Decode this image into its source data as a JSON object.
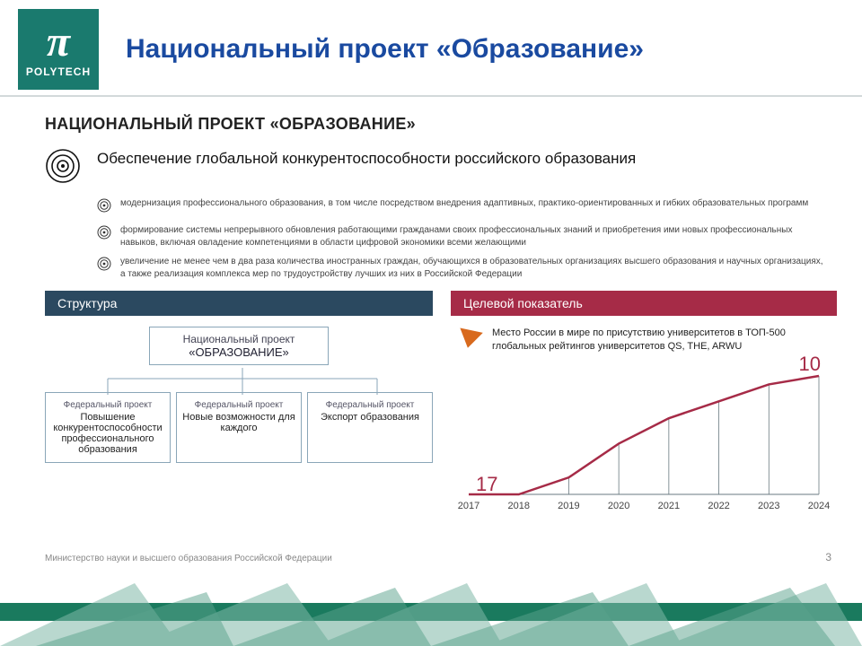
{
  "logo": {
    "symbol": "π",
    "text": "POLYTECH",
    "bg": "#1a7a6e"
  },
  "slide_title": "Национальный проект «Образование»",
  "section_heading": "НАЦИОНАЛЬНЫЙ ПРОЕКТ «ОБРАЗОВАНИЕ»",
  "goal": {
    "main": "Обеспечение глобальной конкурентоспособности российского образования",
    "subs": [
      "модернизация профессионального образования, в том числе посредством внедрения адаптивных, практико-ориентированных и гибких образовательных программ",
      "формирование системы непрерывного обновления работающими гражданами своих профессиональных знаний и приобретения ими новых профессиональных навыков, включая овладение компетенциями в области цифровой экономики всеми желающими",
      "увеличение не менее чем в два раза количества иностранных граждан, обучающихся в образовательных организациях высшего образования и научных организациях, а также реализация комплекса мер по трудоустройству лучших из них в Российской Федерации"
    ]
  },
  "left": {
    "band": "Структура",
    "root": {
      "kicker": "Национальный проект",
      "main": "«ОБРАЗОВАНИЕ»"
    },
    "children": [
      {
        "kicker": "Федеральный проект",
        "title": "Повышение конкурентоспособности профессионального образования"
      },
      {
        "kicker": "Федеральный проект",
        "title": "Новые возможности для каждого"
      },
      {
        "kicker": "Федеральный проект",
        "title": "Экспорт образования"
      }
    ],
    "box_border": "#8aa6b8",
    "connector_color": "#8aa6b8"
  },
  "right": {
    "band": "Целевой показатель",
    "arrow_color": "#d86a1e",
    "heading": "Место России в мире по присутствию университетов в ТОП-500 глобальных рейтингов университетов QS, THE, ARWU",
    "chart": {
      "type": "line",
      "years": [
        "2017",
        "2018",
        "2019",
        "2020",
        "2021",
        "2022",
        "2023",
        "2024"
      ],
      "values": [
        17,
        17,
        16,
        14,
        12.5,
        11.5,
        10.5,
        10
      ],
      "ylim_display": [
        17,
        10
      ],
      "line_color": "#a62b47",
      "line_width": 2.5,
      "grid_color": "#6a7a80",
      "axis_color": "#6a7a80",
      "label_fontsize": 11,
      "label_color": "#444",
      "start_label": "17",
      "end_label": "10",
      "endlabel_fontsize": 22,
      "endlabel_color": "#a62b47"
    }
  },
  "footer": "Министерство науки и высшего образования Российской Федерации",
  "page": "3",
  "deco": {
    "band": "#1a7a5e",
    "pattern": "#7fb8a8"
  }
}
